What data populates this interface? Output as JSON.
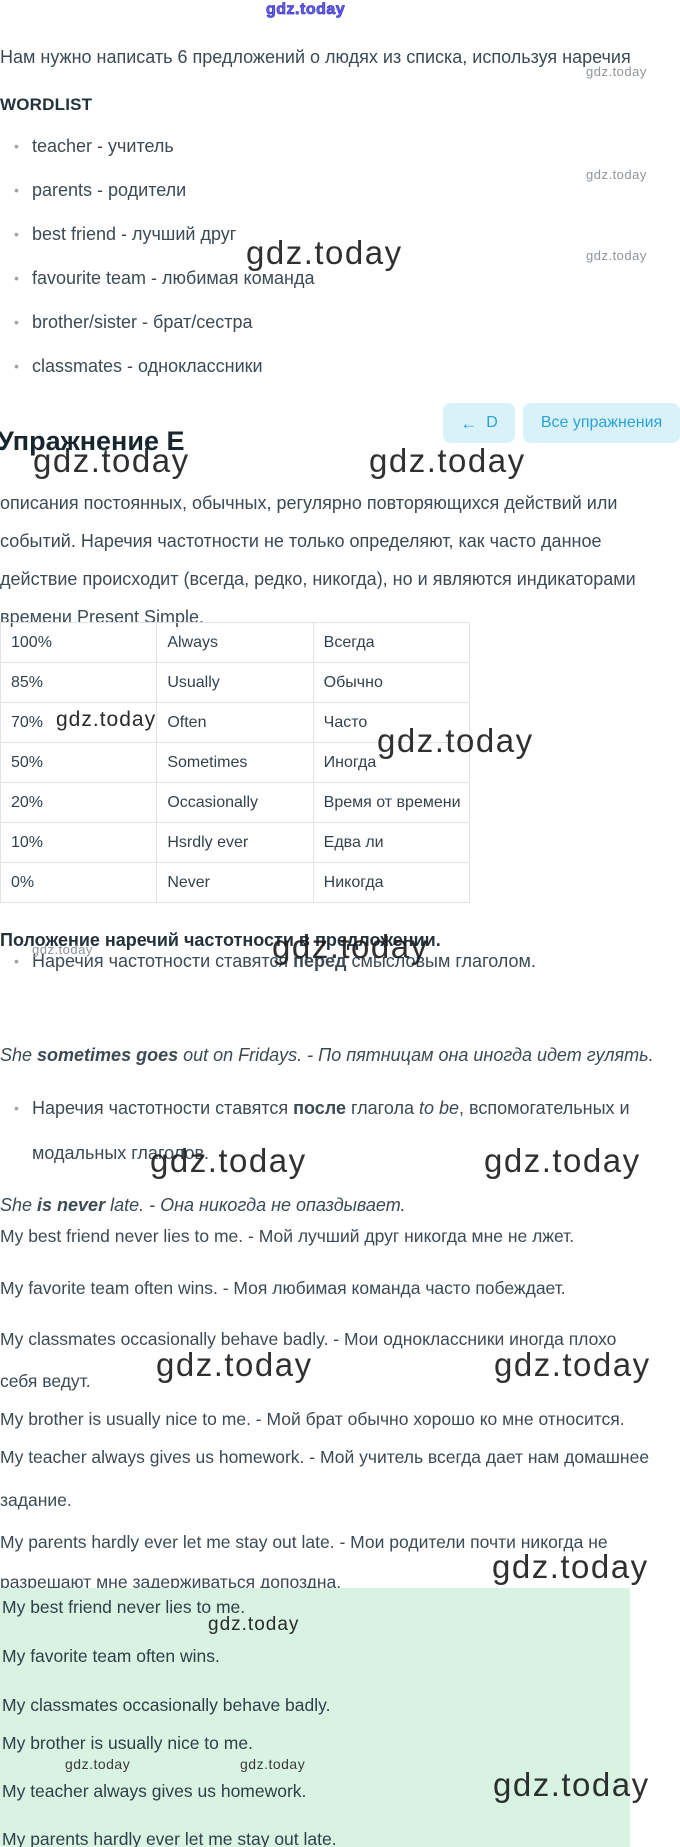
{
  "watermark": {
    "text": "gdz.today"
  },
  "intro": "Нам нужно написать 6 предложений о людях из списка, используя наречия",
  "wordlist": {
    "title": "WORDLIST",
    "items": [
      "teacher - учитель",
      "parents - родители",
      "best friend - лучший друг",
      "favourite team - любимая команда",
      "brother/sister - брат/сестра",
      "classmates - одноклассники"
    ]
  },
  "exercise": {
    "title": "Упражнение E",
    "back_arrow_icon": "←",
    "back_label": "D",
    "all_exercises_label": "Все упражнения"
  },
  "theory": {
    "paragraph": "описания постоянных, обычных, регулярно повторяющихся действий или событий. Наречия частотности не только определяют, как часто данное действие происходит (всегда, редко, никогда), но и являются индикаторами времени Present Simple."
  },
  "frequency_table": {
    "rows": [
      [
        "100%",
        "Always",
        "Всегда"
      ],
      [
        "85%",
        "Usually",
        "Обычно"
      ],
      [
        "70%",
        "Often",
        "Часто"
      ],
      [
        "50%",
        "Sometimes",
        "Иногда"
      ],
      [
        "20%",
        "Occasionally",
        "Время от времени"
      ],
      [
        "10%",
        "Hsrdly ever",
        "Едва ли"
      ],
      [
        "0%",
        "Never",
        "Никогда"
      ]
    ]
  },
  "position_section": {
    "heading": "Положение наречий частотности в предложении.",
    "rules": [
      {
        "parts": [
          {
            "t": "Наречия частотности ставятся ",
            "s": "n"
          },
          {
            "t": "перед",
            "s": "b"
          },
          {
            "t": " смысловым глаголом.",
            "s": "n"
          }
        ]
      },
      {
        "parts": [
          {
            "t": "Наречия частотности ставятся ",
            "s": "n"
          },
          {
            "t": "после",
            "s": "b"
          },
          {
            "t": " глагола ",
            "s": "n"
          },
          {
            "t": "to be",
            "s": "i"
          },
          {
            "t": ", вспомогательных и модальных глаголов.",
            "s": "n"
          }
        ]
      }
    ],
    "examples": [
      {
        "parts": [
          {
            "t": "She ",
            "s": "i"
          },
          {
            "t": "sometimes goes",
            "s": "bi"
          },
          {
            "t": " out on Fridays. - По пятницам она иногда идет гулять.",
            "s": "i"
          }
        ]
      },
      {
        "parts": [
          {
            "t": "She ",
            "s": "i"
          },
          {
            "t": "is never",
            "s": "bi"
          },
          {
            "t": " late. - Она никогда не опаздывает.",
            "s": "i"
          }
        ]
      }
    ]
  },
  "answers_explained": [
    "My best friend never lies to me. - Мой лучший друг никогда мне не лжет.",
    "My favorite team often wins. - Моя любимая команда часто побеждает.",
    "My classmates occasionally behave badly. - Мои одноклассники иногда плохо себя ведут.",
    "My brother is usually nice to me. - Мой брат обычно хорошо ко мне относится.",
    "My teacher always gives us homework. - Мой учитель всегда дает нам домашнее задание.",
    "My parents hardly ever let me stay out late. - Мои родители почти никогда не разрешают мне задерживаться допоздна."
  ],
  "answers_final": [
    "My best friend never lies to me.",
    "My favorite team often wins.",
    "My classmates occasionally behave badly.",
    "My brother is usually nice to me.",
    "My teacher always gives us homework.",
    "My parents hardly ever let me stay out late."
  ],
  "colors": {
    "accent_blue": "#2aa3d9",
    "button_bg": "#d9f1f9",
    "answer_block_bg": "#d9f3e2",
    "watermark_blue": "#403ad0"
  }
}
